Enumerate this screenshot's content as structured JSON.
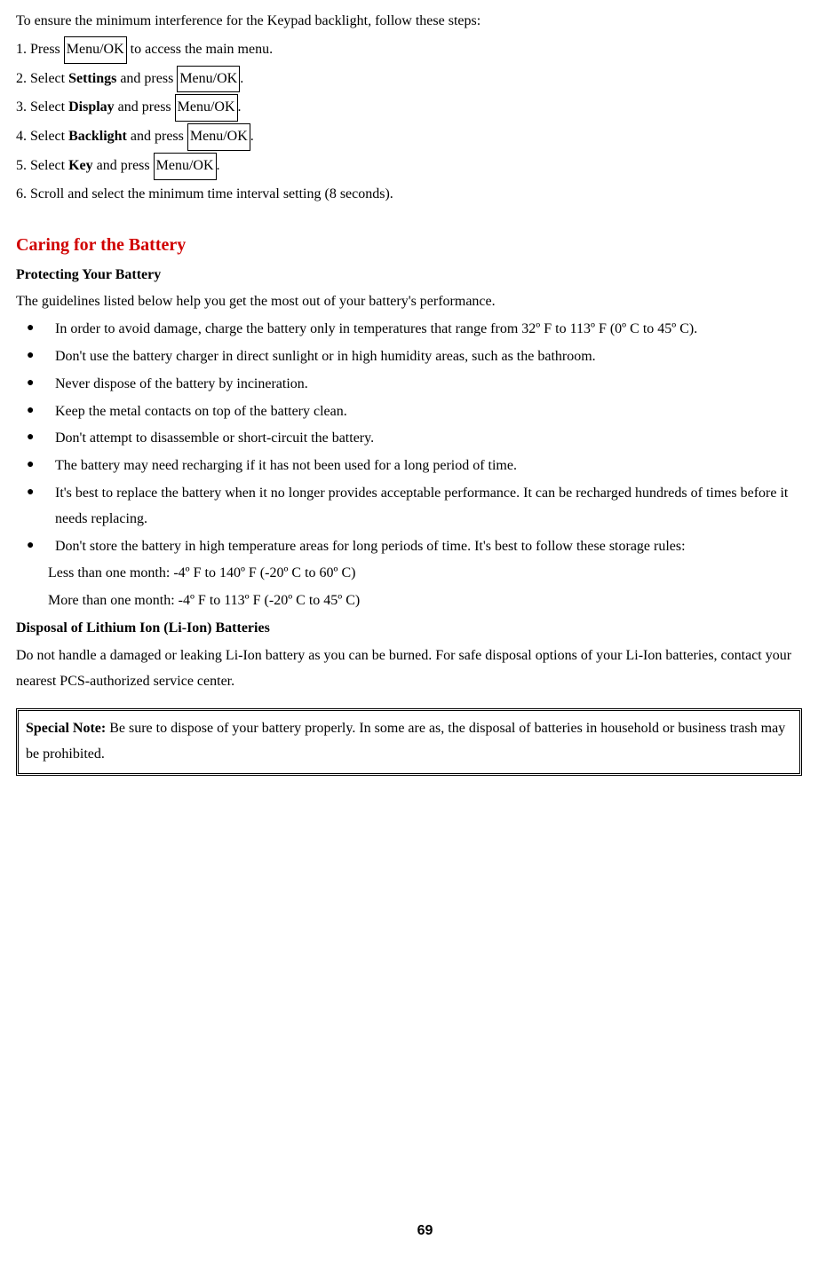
{
  "intro_line": "To ensure the minimum interference for the Keypad backlight, follow these steps:",
  "steps": {
    "s1_pre": "1. Press ",
    "s1_box": "Menu/OK",
    "s1_post": " to access the main menu.",
    "s2_pre": "2. Select ",
    "s2_bold": "Settings",
    "s2_mid": " and press ",
    "s2_box": "Menu/OK",
    "s2_post": ".",
    "s3_pre": "3. Select ",
    "s3_bold": "Display",
    "s3_mid": " and press ",
    "s3_box": "Menu/OK",
    "s3_post": ".",
    "s4_pre": "4. Select ",
    "s4_bold": "Backlight",
    "s4_mid": " and press ",
    "s4_box": "Menu/OK",
    "s4_post": ".",
    "s5_pre": "5. Select ",
    "s5_bold": "Key",
    "s5_mid": " and press ",
    "s5_box": "Menu/OK",
    "s5_post": ".",
    "s6": "6. Scroll and select the minimum time interval setting (8 seconds)."
  },
  "heading_red": "Caring for the Battery",
  "subheading1": "Protecting Your Battery",
  "battery_intro": "The guidelines listed below help you get the most out of your battery's performance.",
  "bullets": [
    "In order to avoid damage, charge the battery only in temperatures that range from 32º F to 113º F (0º C to 45º C).",
    "Don't use the battery charger in direct sunlight or in high humidity areas, such as the bathroom.",
    "Never dispose of the battery by incineration.",
    "Keep the metal contacts on top of the battery clean.",
    "Don't attempt to disassemble or short-circuit the battery.",
    "The battery may need recharging if it has not been used for a long period of time.",
    "It's best to replace the battery when it no longer provides acceptable performance. It can be recharged hundreds of times before it needs replacing.",
    "Don't store the battery in high temperature areas for long periods of time. It's best to follow these storage rules:"
  ],
  "storage_rule1": "Less than one month: -4º F to 140º F (-20º C to 60º C)",
  "storage_rule2": "More than one month: -4º F to 113º F (-20º C to 45º C)",
  "subheading2": "Disposal of Lithium Ion (Li-Ion) Batteries",
  "disposal_text": "Do not handle a damaged or leaking Li-Ion battery as you can be burned. For safe disposal options of your Li-Ion batteries, contact your nearest PCS-authorized service center.",
  "note_bold": "Special Note:",
  "note_text": " Be sure to dispose of your battery properly. In some are as, the disposal of batteries in household or business trash may be prohibited.",
  "page_number": "69"
}
